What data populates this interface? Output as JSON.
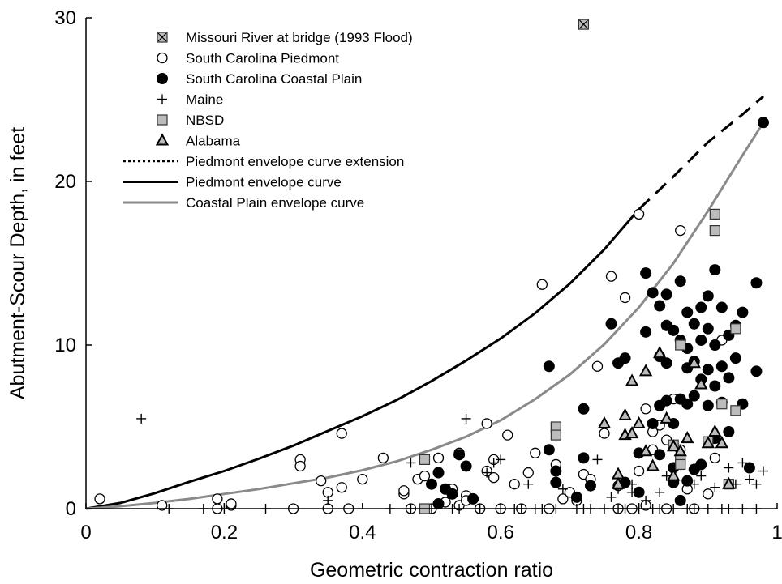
{
  "chart_data": {
    "type": "scatter",
    "title": "",
    "xlabel": "Geometric contraction ratio",
    "ylabel": "Abutment-Scour Depth, in feet",
    "xlim": [
      0,
      1
    ],
    "ylim": [
      0,
      30
    ],
    "x_ticks": [
      0,
      0.2,
      0.4,
      0.6,
      0.8,
      1
    ],
    "x_tick_labels": [
      "0",
      "0.2",
      "0.4",
      "0.6",
      "0.8",
      "1"
    ],
    "y_ticks": [
      0,
      10,
      20,
      30
    ],
    "y_tick_labels": [
      "0",
      "10",
      "20",
      "30"
    ],
    "grid": false,
    "legend": {
      "placement": "top-left",
      "entries": [
        {
          "label": "Missouri River at bridge (1993 Flood)",
          "marker": "square-x"
        },
        {
          "label": "South Carolina Piedmont",
          "marker": "open-circle"
        },
        {
          "label": "South Carolina Coastal Plain",
          "marker": "filled-circle"
        },
        {
          "label": "Maine",
          "marker": "plus"
        },
        {
          "label": "NBSD",
          "marker": "gray-square"
        },
        {
          "label": "Alabama",
          "marker": "triangle"
        },
        {
          "label": "Piedmont envelope curve extension",
          "marker": "dotted-line"
        },
        {
          "label": "Piedmont envelope curve",
          "marker": "black-line"
        },
        {
          "label": "Coastal Plain envelope curve",
          "marker": "gray-line"
        }
      ]
    },
    "series": [
      {
        "name": "Missouri River at bridge (1993 Flood)",
        "marker": "square-x",
        "x": [
          0.72
        ],
        "y": [
          29.6
        ]
      },
      {
        "name": "South Carolina Piedmont",
        "marker": "open-circle",
        "x": [
          0.02,
          0.11,
          0.19,
          0.19,
          0.21,
          0.21,
          0.3,
          0.31,
          0.31,
          0.34,
          0.35,
          0.35,
          0.37,
          0.37,
          0.38,
          0.4,
          0.43,
          0.46,
          0.46,
          0.47,
          0.48,
          0.49,
          0.5,
          0.51,
          0.52,
          0.53,
          0.54,
          0.54,
          0.55,
          0.55,
          0.57,
          0.58,
          0.58,
          0.59,
          0.59,
          0.6,
          0.61,
          0.62,
          0.63,
          0.64,
          0.65,
          0.66,
          0.67,
          0.68,
          0.69,
          0.7,
          0.71,
          0.72,
          0.73,
          0.74,
          0.75,
          0.76,
          0.77,
          0.77,
          0.78,
          0.79,
          0.8,
          0.8,
          0.81,
          0.81,
          0.82,
          0.82,
          0.83,
          0.84,
          0.84,
          0.85,
          0.86,
          0.86,
          0.87,
          0.88,
          0.89,
          0.9,
          0.91,
          0.92
        ],
        "y": [
          0.6,
          0.2,
          0.0,
          0.6,
          0.2,
          0.3,
          0.0,
          3.0,
          2.6,
          1.7,
          1.0,
          0.0,
          4.6,
          1.3,
          0.0,
          1.8,
          3.1,
          0.9,
          1.1,
          0.0,
          1.8,
          2.0,
          0.0,
          3.1,
          0.4,
          1.2,
          3.4,
          0.2,
          0.8,
          0.5,
          0.0,
          5.2,
          2.3,
          1.9,
          3.0,
          0.0,
          4.5,
          1.5,
          0.0,
          2.2,
          3.4,
          13.7,
          0.0,
          2.7,
          0.6,
          1.0,
          0.5,
          2.1,
          1.8,
          8.7,
          4.6,
          14.2,
          0.0,
          1.4,
          12.9,
          0.0,
          18.0,
          2.3,
          6.1,
          0.2,
          4.7,
          3.6,
          5.1,
          4.2,
          0.0,
          6.7,
          17.0,
          3.6,
          1.2,
          0.0,
          2.7,
          0.9,
          3.1,
          10.3
        ]
      },
      {
        "name": "South Carolina Coastal Plain",
        "marker": "filled-circle",
        "x": [
          0.5,
          0.51,
          0.51,
          0.52,
          0.53,
          0.54,
          0.55,
          0.56,
          0.67,
          0.67,
          0.68,
          0.68,
          0.71,
          0.72,
          0.72,
          0.73,
          0.76,
          0.77,
          0.78,
          0.78,
          0.8,
          0.8,
          0.81,
          0.81,
          0.82,
          0.82,
          0.83,
          0.83,
          0.83,
          0.83,
          0.84,
          0.84,
          0.84,
          0.84,
          0.85,
          0.85,
          0.85,
          0.85,
          0.86,
          0.86,
          0.86,
          0.86,
          0.87,
          0.87,
          0.87,
          0.87,
          0.87,
          0.88,
          0.88,
          0.88,
          0.88,
          0.89,
          0.89,
          0.89,
          0.89,
          0.9,
          0.9,
          0.9,
          0.9,
          0.91,
          0.91,
          0.91,
          0.91,
          0.92,
          0.92,
          0.92,
          0.93,
          0.93,
          0.93,
          0.94,
          0.94,
          0.95,
          0.95,
          0.96,
          0.97,
          0.97,
          0.98
        ],
        "y": [
          1.5,
          2.2,
          0.3,
          1.2,
          0.9,
          3.3,
          2.6,
          0.6,
          8.7,
          3.6,
          2.3,
          1.6,
          0.7,
          6.1,
          3.1,
          1.4,
          11.3,
          8.9,
          1.6,
          9.2,
          3.4,
          1.0,
          14.4,
          10.8,
          13.2,
          5.2,
          12.4,
          9.3,
          6.3,
          3.3,
          13.1,
          11.2,
          8.9,
          6.6,
          10.9,
          5.2,
          2.5,
          1.6,
          13.9,
          10.3,
          6.7,
          0.5,
          12.0,
          9.8,
          8.6,
          6.4,
          1.7,
          11.3,
          9.0,
          6.9,
          2.4,
          12.3,
          10.3,
          7.9,
          2.7,
          13.0,
          11.0,
          8.5,
          6.3,
          14.6,
          10.0,
          7.5,
          4.3,
          12.3,
          8.7,
          6.5,
          10.6,
          8.0,
          4.7,
          11.2,
          9.2,
          12.0,
          6.4,
          2.5,
          13.8,
          8.4,
          23.6
        ]
      },
      {
        "name": "Maine",
        "marker": "plus",
        "x": [
          0.08,
          0.12,
          0.17,
          0.2,
          0.26,
          0.35,
          0.44,
          0.47,
          0.47,
          0.5,
          0.53,
          0.54,
          0.55,
          0.57,
          0.58,
          0.59,
          0.6,
          0.6,
          0.62,
          0.63,
          0.64,
          0.65,
          0.66,
          0.68,
          0.69,
          0.71,
          0.72,
          0.73,
          0.74,
          0.75,
          0.76,
          0.77,
          0.77,
          0.78,
          0.79,
          0.79,
          0.8,
          0.81,
          0.82,
          0.83,
          0.83,
          0.84,
          0.85,
          0.86,
          0.87,
          0.88,
          0.88,
          0.89,
          0.9,
          0.91,
          0.92,
          0.93,
          0.93,
          0.94,
          0.95,
          0.95,
          0.96,
          0.97,
          0.97,
          0.98
        ],
        "y": [
          5.5,
          0.0,
          0.0,
          0.0,
          0.0,
          0.5,
          0.0,
          2.8,
          0.0,
          0.0,
          0.0,
          0.0,
          5.5,
          0.0,
          2.2,
          2.8,
          0.0,
          3.0,
          0.0,
          0.0,
          1.5,
          0.0,
          0.0,
          0.0,
          1.2,
          0.0,
          0.0,
          0.0,
          3.0,
          0.0,
          0.7,
          0.0,
          1.2,
          0.0,
          1.0,
          1.5,
          0.0,
          0.5,
          0.0,
          1.0,
          0.0,
          2.0,
          0.0,
          0.5,
          0.0,
          1.5,
          0.0,
          2.0,
          0.0,
          1.3,
          0.0,
          2.5,
          0.0,
          1.5,
          2.8,
          0.0,
          1.8,
          1.5,
          0.0,
          2.3
        ]
      },
      {
        "name": "NBSD",
        "marker": "gray-square",
        "x": [
          0.49,
          0.49,
          0.68,
          0.68,
          0.85,
          0.86,
          0.86,
          0.86,
          0.9,
          0.91,
          0.91,
          0.92,
          0.93,
          0.94,
          0.94
        ],
        "y": [
          3.0,
          0.0,
          5.0,
          4.5,
          3.9,
          10.0,
          3.0,
          2.7,
          4.1,
          18.0,
          17.0,
          6.4,
          1.5,
          11.0,
          6.0
        ]
      },
      {
        "name": "Alabama",
        "marker": "triangle",
        "x": [
          0.75,
          0.77,
          0.77,
          0.78,
          0.78,
          0.79,
          0.79,
          0.8,
          0.81,
          0.81,
          0.82,
          0.83,
          0.84,
          0.85,
          0.85,
          0.86,
          0.87,
          0.88,
          0.89,
          0.9,
          0.91,
          0.92,
          0.93
        ],
        "y": [
          5.2,
          2.1,
          1.5,
          4.5,
          5.7,
          7.8,
          4.6,
          5.2,
          8.4,
          3.5,
          2.6,
          9.5,
          5.5,
          2.0,
          3.8,
          3.5,
          4.3,
          8.9,
          7.6,
          4.0,
          4.7,
          4.0,
          1.5
        ]
      }
    ],
    "curves": [
      {
        "name": "Piedmont envelope curve",
        "style": "black-solid",
        "x": [
          0,
          0.05,
          0.1,
          0.15,
          0.2,
          0.25,
          0.3,
          0.35,
          0.4,
          0.45,
          0.5,
          0.55,
          0.6,
          0.65,
          0.7,
          0.75,
          0.8
        ],
        "y": [
          0,
          0.35,
          0.95,
          1.65,
          2.3,
          3.05,
          3.85,
          4.75,
          5.65,
          6.65,
          7.8,
          9.05,
          10.4,
          11.95,
          13.75,
          15.85,
          18.3
        ]
      },
      {
        "name": "Piedmont envelope curve extension",
        "style": "black-dashed",
        "x": [
          0.8,
          0.85,
          0.9,
          0.95,
          0.98
        ],
        "y": [
          18.3,
          20.3,
          22.4,
          24.1,
          25.2
        ]
      },
      {
        "name": "Coastal Plain envelope curve",
        "style": "gray-solid",
        "x": [
          0,
          0.05,
          0.1,
          0.15,
          0.2,
          0.25,
          0.3,
          0.35,
          0.4,
          0.45,
          0.5,
          0.55,
          0.6,
          0.65,
          0.7,
          0.75,
          0.8,
          0.85,
          0.9,
          0.95,
          0.98
        ],
        "y": [
          0,
          0.15,
          0.35,
          0.6,
          0.9,
          1.2,
          1.55,
          1.9,
          2.35,
          2.9,
          3.6,
          4.4,
          5.4,
          6.7,
          8.2,
          10.05,
          12.3,
          15.0,
          18.2,
          21.6,
          23.6
        ]
      }
    ]
  }
}
